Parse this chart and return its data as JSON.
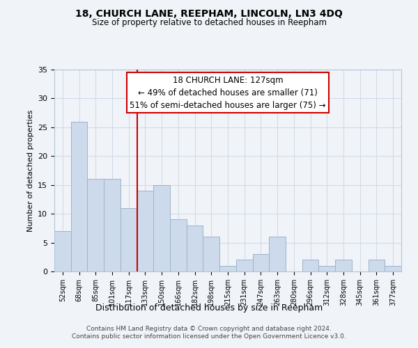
{
  "title": "18, CHURCH LANE, REEPHAM, LINCOLN, LN3 4DQ",
  "subtitle": "Size of property relative to detached houses in Reepham",
  "xlabel": "Distribution of detached houses by size in Reepham",
  "ylabel": "Number of detached properties",
  "bar_labels": [
    "52sqm",
    "68sqm",
    "85sqm",
    "101sqm",
    "117sqm",
    "133sqm",
    "150sqm",
    "166sqm",
    "182sqm",
    "198sqm",
    "215sqm",
    "231sqm",
    "247sqm",
    "263sqm",
    "280sqm",
    "296sqm",
    "312sqm",
    "328sqm",
    "345sqm",
    "361sqm",
    "377sqm"
  ],
  "bar_values": [
    7,
    26,
    16,
    16,
    11,
    14,
    15,
    9,
    8,
    6,
    1,
    2,
    3,
    6,
    0,
    2,
    1,
    2,
    0,
    2,
    1
  ],
  "bar_color": "#cddaeb",
  "bar_edge_color": "#9ab4cc",
  "vline_x_idx": 5,
  "vline_color": "#cc0000",
  "annotation_lines": [
    "18 CHURCH LANE: 127sqm",
    "← 49% of detached houses are smaller (71)",
    "51% of semi-detached houses are larger (75) →"
  ],
  "annotation_box_color": "#ffffff",
  "annotation_box_edge_color": "#cc0000",
  "ylim": [
    0,
    35
  ],
  "yticks": [
    0,
    5,
    10,
    15,
    20,
    25,
    30,
    35
  ],
  "grid_color": "#d0dce8",
  "footer_line1": "Contains HM Land Registry data © Crown copyright and database right 2024.",
  "footer_line2": "Contains public sector information licensed under the Open Government Licence v3.0.",
  "bg_color": "#f0f4f8"
}
